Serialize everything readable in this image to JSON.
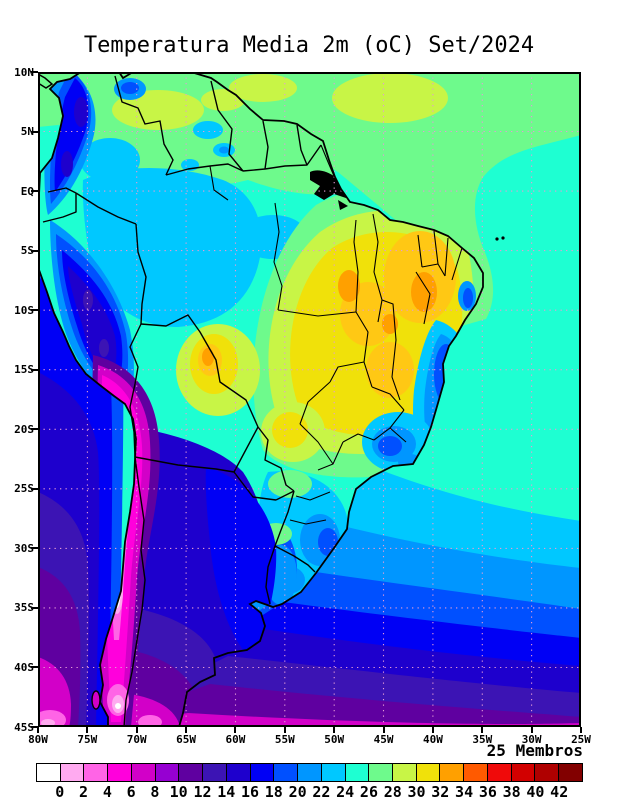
{
  "header": {
    "title": "Temperatura Media 2m (oC) Set/2024"
  },
  "axes": {
    "lat_labels": [
      "10N",
      "5N",
      "EQ",
      "5S",
      "10S",
      "15S",
      "20S",
      "25S",
      "30S",
      "35S",
      "40S",
      "45S"
    ],
    "lon_labels": [
      "80W",
      "75W",
      "70W",
      "65W",
      "60W",
      "55W",
      "50W",
      "45W",
      "40W",
      "35W",
      "30W",
      "25W"
    ]
  },
  "colorbar": {
    "members_label": "25 Membros",
    "tick_labels": [
      "0",
      "2",
      "4",
      "6",
      "8",
      "10",
      "12",
      "14",
      "16",
      "18",
      "20",
      "22",
      "24",
      "26",
      "28",
      "30",
      "32",
      "34",
      "36",
      "38",
      "40",
      "42"
    ],
    "cell_colors": [
      "#FFFFFF",
      "#FFAAF0",
      "#FF64E6",
      "#FF00DC",
      "#D200C8",
      "#9600D2",
      "#5F00A0",
      "#3C14B4",
      "#1E00CD",
      "#0000F5",
      "#0050FF",
      "#0096FF",
      "#00C8FF",
      "#1EFFD2",
      "#6EFA8C",
      "#C8F546",
      "#F0E10A",
      "#FFA000",
      "#FF5A00",
      "#F00A0A",
      "#D20000",
      "#AF0000",
      "#820000"
    ]
  },
  "chart_data": {
    "type": "heatmap",
    "subtype": "filled_contour_map",
    "title": "Temperatura Media 2m (oC) Set/2024",
    "variable": "Temperatura Media 2m",
    "units": "oC",
    "period": "Set/2024",
    "ensemble_members_label": "25 Membros",
    "ensemble_members": 25,
    "lon_ticks": [
      "80W",
      "75W",
      "70W",
      "65W",
      "60W",
      "55W",
      "50W",
      "45W",
      "40W",
      "35W",
      "30W",
      "25W"
    ],
    "lat_ticks": [
      "10N",
      "5N",
      "EQ",
      "5S",
      "10S",
      "15S",
      "20S",
      "25S",
      "30S",
      "35S",
      "40S",
      "45S"
    ],
    "contour_levels": [
      0,
      2,
      4,
      6,
      8,
      10,
      12,
      14,
      16,
      18,
      20,
      22,
      24,
      26,
      28,
      30,
      32,
      34,
      36,
      38,
      40,
      42
    ],
    "contour_interval": 2,
    "palette": [
      "#FFFFFF",
      "#FFAAF0",
      "#FF64E6",
      "#FF00DC",
      "#D200C8",
      "#9600D2",
      "#5F00A0",
      "#3C14B4",
      "#1E00CD",
      "#0000F5",
      "#0050FF",
      "#0096FF",
      "#00C8FF",
      "#1EFFD2",
      "#6EFA8C",
      "#C8F546",
      "#F0E10A",
      "#FFA000",
      "#FF5A00",
      "#F00A0A",
      "#D20000",
      "#AF0000",
      "#820000"
    ],
    "grid": "dotted 5-degree graticule",
    "legend_position": "bottom horizontal colorbar",
    "regions": [
      {
        "area": "Equatorial Atlantic and Guianas coast",
        "approx_temp_c": "26-28"
      },
      {
        "area": "Venezuela llanos patches",
        "approx_temp_c": "28-30"
      },
      {
        "area": "Western Amazon basin",
        "approx_temp_c": "22-24"
      },
      {
        "area": "Central Brazil (Tocantins/Goias) core",
        "approx_temp_c": "30-34"
      },
      {
        "area": "Hot spots central-east Brazil",
        "approx_temp_c": "32-36"
      },
      {
        "area": "Northeast Brazil interior",
        "approx_temp_c": "30-34"
      },
      {
        "area": "East Brazilian coast highlands (Bahia/Minas)",
        "approx_temp_c": "16-22"
      },
      {
        "area": "Colombian/Ecuadorian Andes",
        "approx_temp_c": "14-18"
      },
      {
        "area": "Peruvian Andes",
        "approx_temp_c": "10-16"
      },
      {
        "area": "Altiplano and high Andes ridge",
        "approx_temp_c": "0-6 with white core below 0"
      },
      {
        "area": "Northern Argentina / Chaco",
        "approx_temp_c": "14-18"
      },
      {
        "area": "Uruguay and Pampas",
        "approx_temp_c": "16-20"
      },
      {
        "area": "Patagonia",
        "approx_temp_c": "4-10"
      },
      {
        "area": "Subtropical South Atlantic",
        "approx_temp_c": "16-24"
      },
      {
        "area": "South Atlantic at 45S",
        "approx_temp_c": "4-8"
      },
      {
        "area": "Southeast Pacific off Chile",
        "approx_temp_c": "8-14"
      }
    ]
  }
}
